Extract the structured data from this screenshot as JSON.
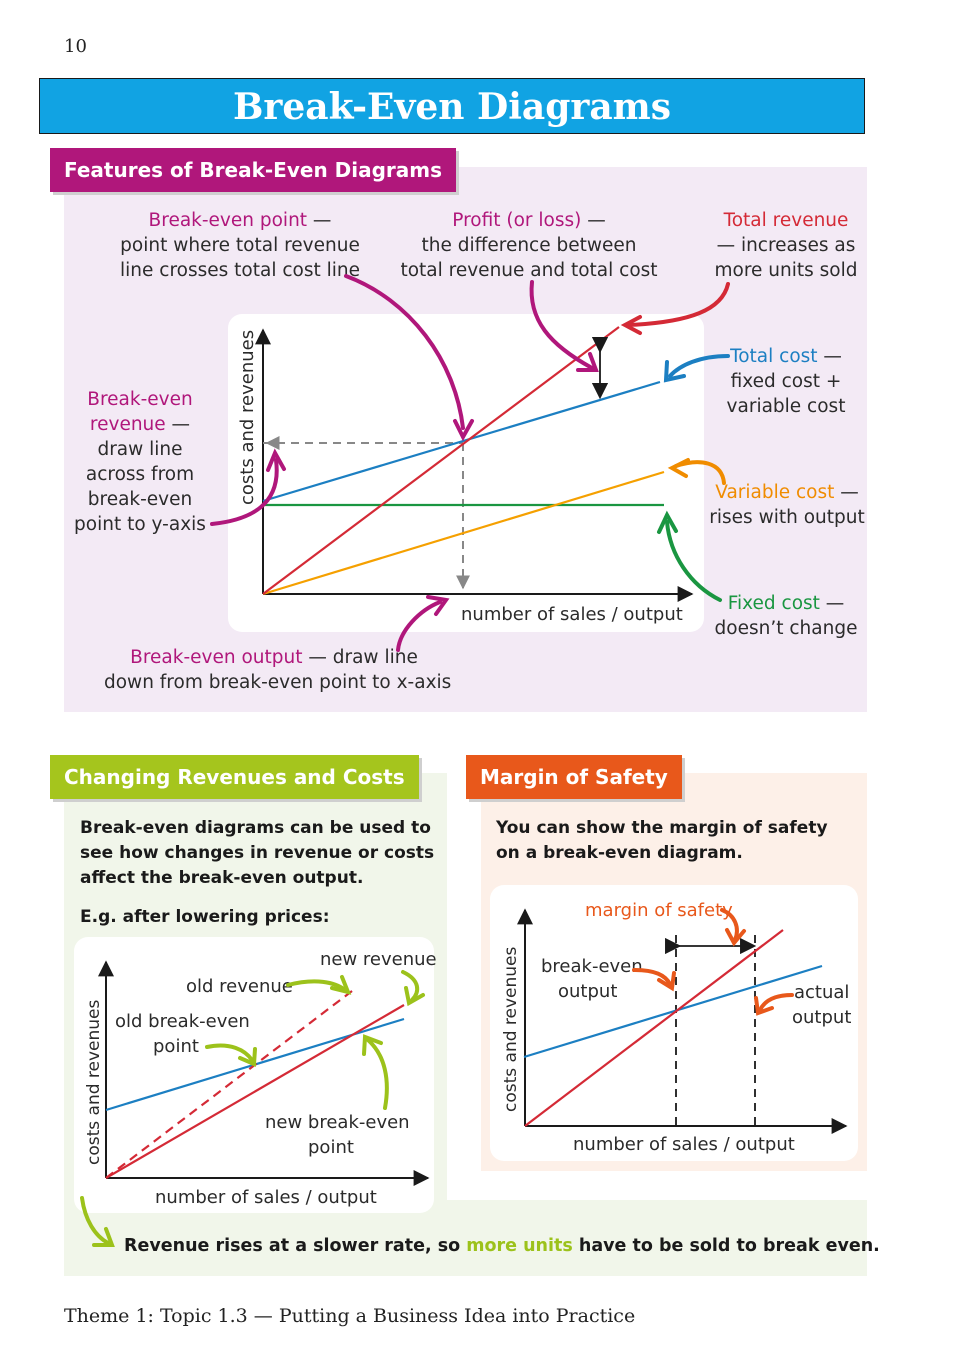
{
  "page_number": "10",
  "title": "Break-Even Diagrams",
  "section1": {
    "tab": "Features of Break-Even Diagrams",
    "break_even_point": {
      "term": "Break-even point",
      "line1": " —",
      "line2": "point where total revenue",
      "line3": "line crosses total cost line"
    },
    "profit": {
      "term": "Profit (or loss)",
      "line1": " —",
      "line2": "the difference between",
      "line3": "total revenue and total cost"
    },
    "total_revenue": {
      "term": "Total revenue",
      "line2": "— increases as",
      "line3": "more units sold"
    },
    "total_cost": {
      "term": "Total cost",
      "line1": " —",
      "line2": "fixed cost +",
      "line3": "variable cost"
    },
    "variable_cost": {
      "term": "Variable cost",
      "line1": " —",
      "line2": "rises with output"
    },
    "fixed_cost": {
      "term": "Fixed cost",
      "line1": " —",
      "line2": "doesn’t change"
    },
    "break_even_revenue": {
      "term1": "Break-even",
      "term2": "revenue",
      "line2": " —",
      "line3": "draw line",
      "line4": "across from",
      "line5": "break-even",
      "line6": "point to y-axis"
    },
    "break_even_output": {
      "term": "Break-even output",
      "line1": " — draw line",
      "line2": "down from break-even point to x-axis"
    },
    "y_label": "costs and revenues",
    "x_label": "number of sales / output"
  },
  "section2": {
    "tab": "Changing Revenues and Costs",
    "intro1": "Break-even diagrams can be used to",
    "intro2": "see how changes in revenue or costs",
    "intro3": "affect the break-even output.",
    "eg": "E.g. after lowering prices:",
    "old_revenue": "old revenue",
    "new_revenue": "new revenue",
    "old_bep1": "old break-even",
    "old_bep2": "point",
    "new_bep1": "new break-even",
    "new_bep2": "point",
    "y_label": "costs and revenues",
    "x_label": "number of sales / output"
  },
  "section3": {
    "tab": "Margin of Safety",
    "intro1": "You can show the margin of safety",
    "intro2": "on a break-even diagram.",
    "margin_label": "margin of safety",
    "bep_output1": "break-even",
    "bep_output2": "output",
    "actual1": "actual",
    "actual2": "output",
    "y_label": "costs and revenues",
    "x_label": "number of sales / output"
  },
  "conclusion": {
    "part1": "Revenue rises at a slower rate, so ",
    "highlight": "more units",
    "part2": " have to be sold to break even."
  },
  "footer": "Theme 1: Topic 1.3 — Putting a Business Idea into Practice",
  "colors": {
    "revenue": "#d42a36",
    "total_cost": "#1c7fc2",
    "fixed_cost": "#1a9641",
    "variable_cost": "#f5a000",
    "magenta": "#b0177b",
    "title_blue": "#11a3e3",
    "lime": "#9cc21b",
    "orange": "#e8581b"
  }
}
